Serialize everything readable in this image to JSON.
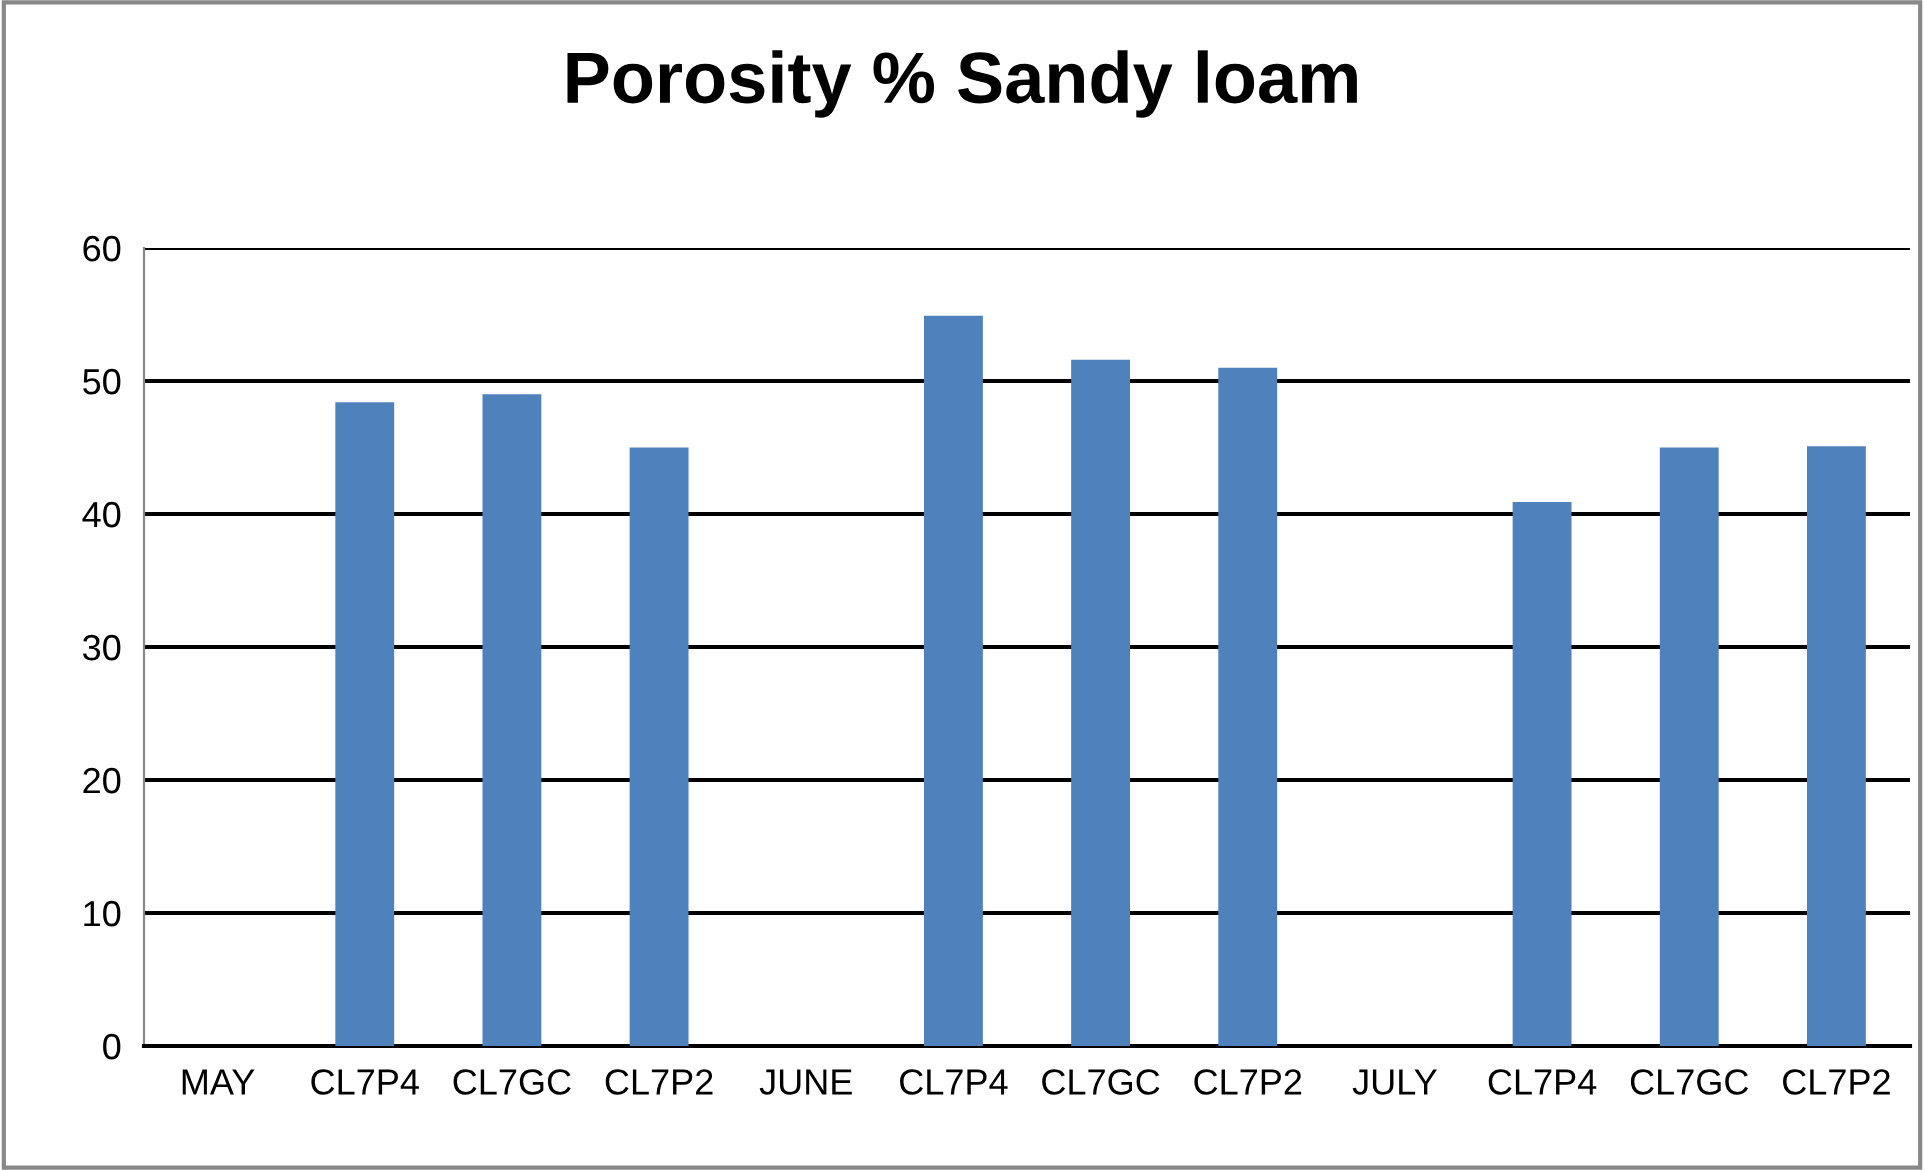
{
  "chart_data": {
    "type": "bar",
    "title": "Porosity % Sandy loam",
    "categories": [
      "MAY",
      "CL7P4",
      "CL7GC",
      "CL7P2",
      "JUNE",
      "CL7P4",
      "CL7GC",
      "CL7P2",
      "JULY",
      "CL7P4",
      "CL7GC",
      "CL7P2"
    ],
    "values": [
      null,
      48.4,
      49.0,
      45.0,
      null,
      54.9,
      51.6,
      51.0,
      null,
      40.9,
      45.0,
      45.1
    ],
    "color": "#4f81bd",
    "ylim": [
      0,
      60
    ],
    "yticks": [
      0,
      10,
      20,
      30,
      40,
      50,
      60
    ],
    "grid": "y",
    "legend": false
  }
}
